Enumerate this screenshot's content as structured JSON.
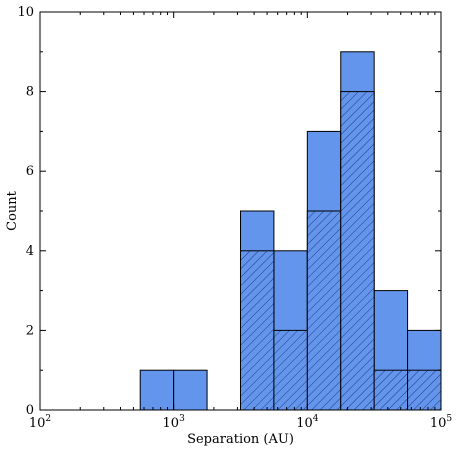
{
  "chart_data": {
    "type": "bar",
    "xlabel": "Separation (AU)",
    "ylabel": "Count",
    "x_scale": "log",
    "xlim": [
      100,
      100000
    ],
    "ylim": [
      0,
      10
    ],
    "x_ticks": [
      {
        "value": 100,
        "base": "10",
        "exp": "2"
      },
      {
        "value": 1000,
        "base": "10",
        "exp": "3"
      },
      {
        "value": 10000,
        "base": "10",
        "exp": "4"
      },
      {
        "value": 100000,
        "base": "10",
        "exp": "5"
      }
    ],
    "y_ticks": [
      "0",
      "2",
      "4",
      "6",
      "8",
      "10"
    ],
    "bin_edges": [
      562,
      1000,
      1778,
      3162,
      5623,
      10000,
      17783,
      31623,
      56234,
      100000
    ],
    "series": [
      {
        "values": [
          1,
          1,
          0,
          5,
          4,
          7,
          9,
          3,
          2
        ],
        "color": "#6495ED",
        "hatch": false
      },
      {
        "values": [
          0,
          0,
          0,
          4,
          2,
          5,
          8,
          1,
          1
        ],
        "color": "#6495ED",
        "hatch": true
      }
    ]
  }
}
